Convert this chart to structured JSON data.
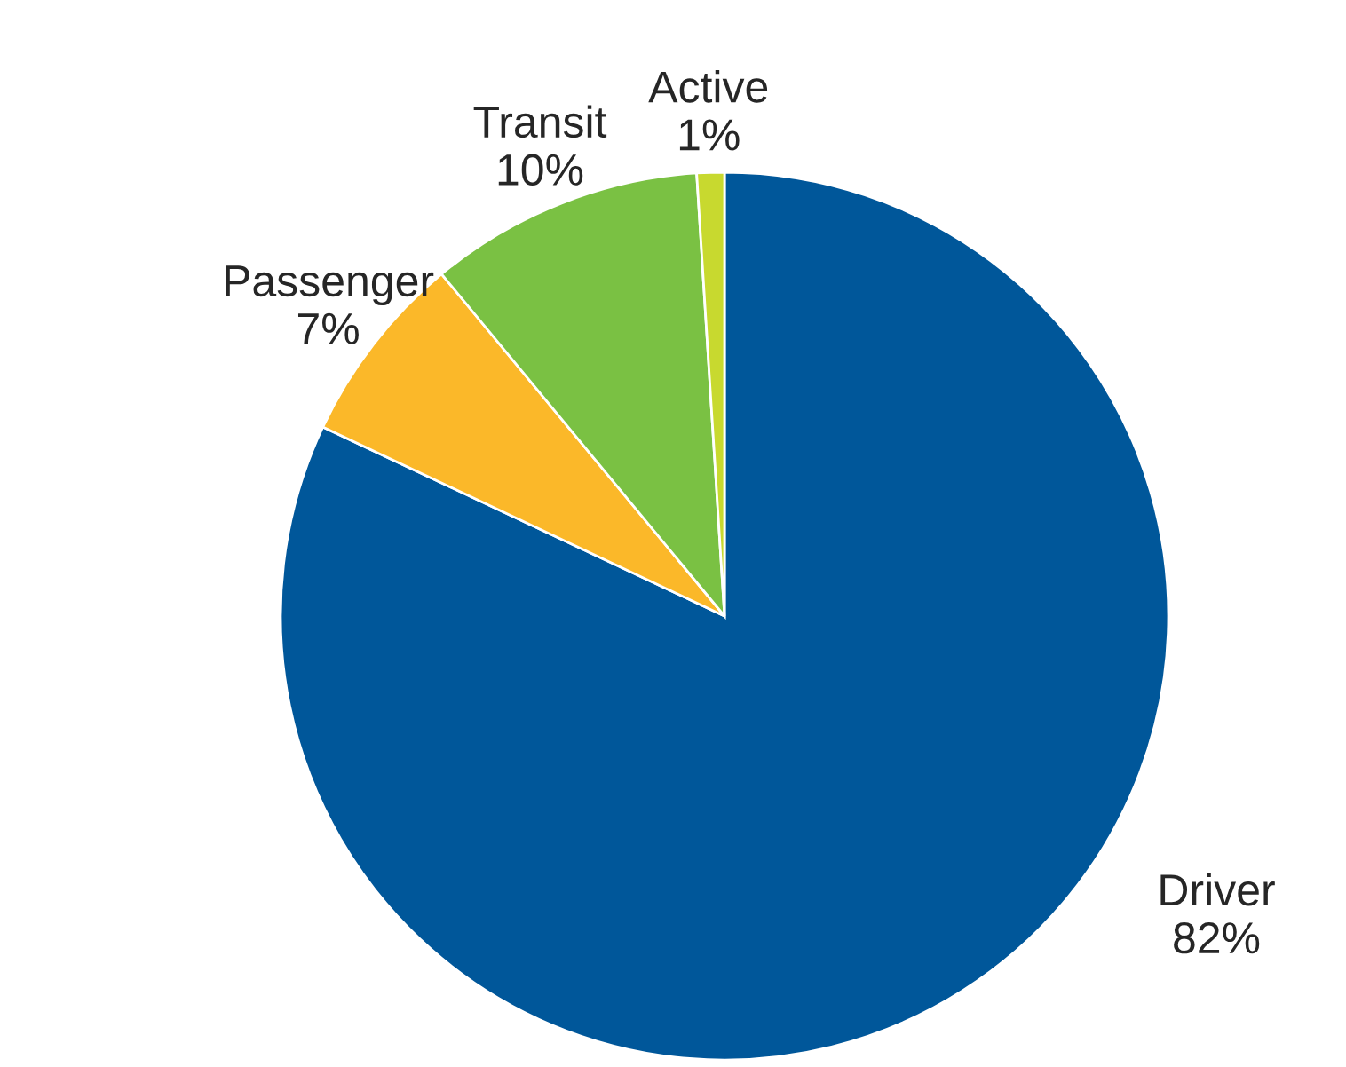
{
  "chart_data": {
    "type": "pie",
    "categories": [
      "Driver",
      "Passenger",
      "Transit",
      "Active"
    ],
    "values": [
      82,
      7,
      10,
      1
    ],
    "value_labels": [
      "82%",
      "7%",
      "10%",
      "1%"
    ],
    "colors": [
      "#00579a",
      "#fbb829",
      "#7ac143",
      "#c8d92f"
    ]
  }
}
